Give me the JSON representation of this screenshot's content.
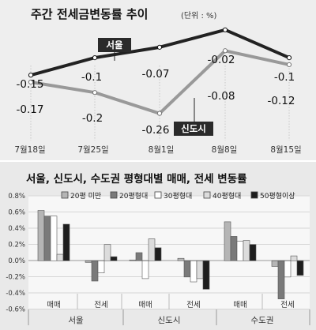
{
  "top": {
    "title": "주간 전세금변동률 추이",
    "unit": "(단위 : %)"
  },
  "bottom": {
    "title": "서울, 신도시, 수도권 평형대별 매매, 전세 변동률"
  },
  "chart_data": [
    {
      "type": "line",
      "title": "주간 전세금변동률 추이",
      "unit": "(단위 : %)",
      "x": [
        "7월18일",
        "7월25일",
        "8월1일",
        "8월8일",
        "8월15일"
      ],
      "series": [
        {
          "name": "서울",
          "values": [
            -0.15,
            -0.1,
            -0.07,
            -0.02,
            -0.1
          ],
          "color": "#222222"
        },
        {
          "name": "신도시",
          "values": [
            -0.17,
            -0.2,
            -0.26,
            -0.08,
            -0.12
          ],
          "color": "#999999"
        }
      ],
      "value_labels": {
        "서울": [
          "-0.15",
          "-0.1",
          "-0.07",
          "-0.02",
          "-0.1"
        ],
        "신도시": [
          "-0.17",
          "-0.2",
          "-0.26",
          "-0.08",
          "-0.12"
        ]
      },
      "ylim": [
        -0.3,
        0.0
      ]
    },
    {
      "type": "bar",
      "title": "서울, 신도시, 수도권 평형대별 매매, 전세 변동률",
      "yticks": [
        "0.8%",
        "0.6%",
        "0.4%",
        "0.2%",
        "0.0%",
        "-0.2%",
        "-0.4%",
        "-0.6%"
      ],
      "ylim": [
        -0.6,
        0.8
      ],
      "legend": [
        "20평 미만",
        "20평형대",
        "30평형대",
        "40평형대",
        "50평형이상"
      ],
      "legend_colors": [
        "#b5b5b5",
        "#7a7a7a",
        "#ffffff",
        "#dcdcdc",
        "#1e1e1e"
      ],
      "regions": [
        "서울",
        "신도시",
        "수도권"
      ],
      "sub_categories": [
        "매매",
        "전세"
      ],
      "groups": [
        {
          "region": "서울",
          "category": "매매",
          "values": [
            0.62,
            0.55,
            0.55,
            0.08,
            0.45
          ]
        },
        {
          "region": "서울",
          "category": "전세",
          "values": [
            -0.02,
            -0.25,
            -0.15,
            0.2,
            0.05
          ]
        },
        {
          "region": "신도시",
          "category": "매매",
          "values": [
            0.01,
            0.1,
            -0.22,
            0.27,
            0.16
          ]
        },
        {
          "region": "신도시",
          "category": "전세",
          "values": [
            0.03,
            -0.2,
            -0.26,
            -0.22,
            -0.35
          ]
        },
        {
          "region": "수도권",
          "category": "매매",
          "values": [
            0.48,
            0.3,
            0.24,
            0.25,
            0.2
          ]
        },
        {
          "region": "수도권",
          "category": "전세",
          "values": [
            -0.07,
            -0.47,
            -0.2,
            0.06,
            -0.18
          ]
        }
      ]
    }
  ]
}
